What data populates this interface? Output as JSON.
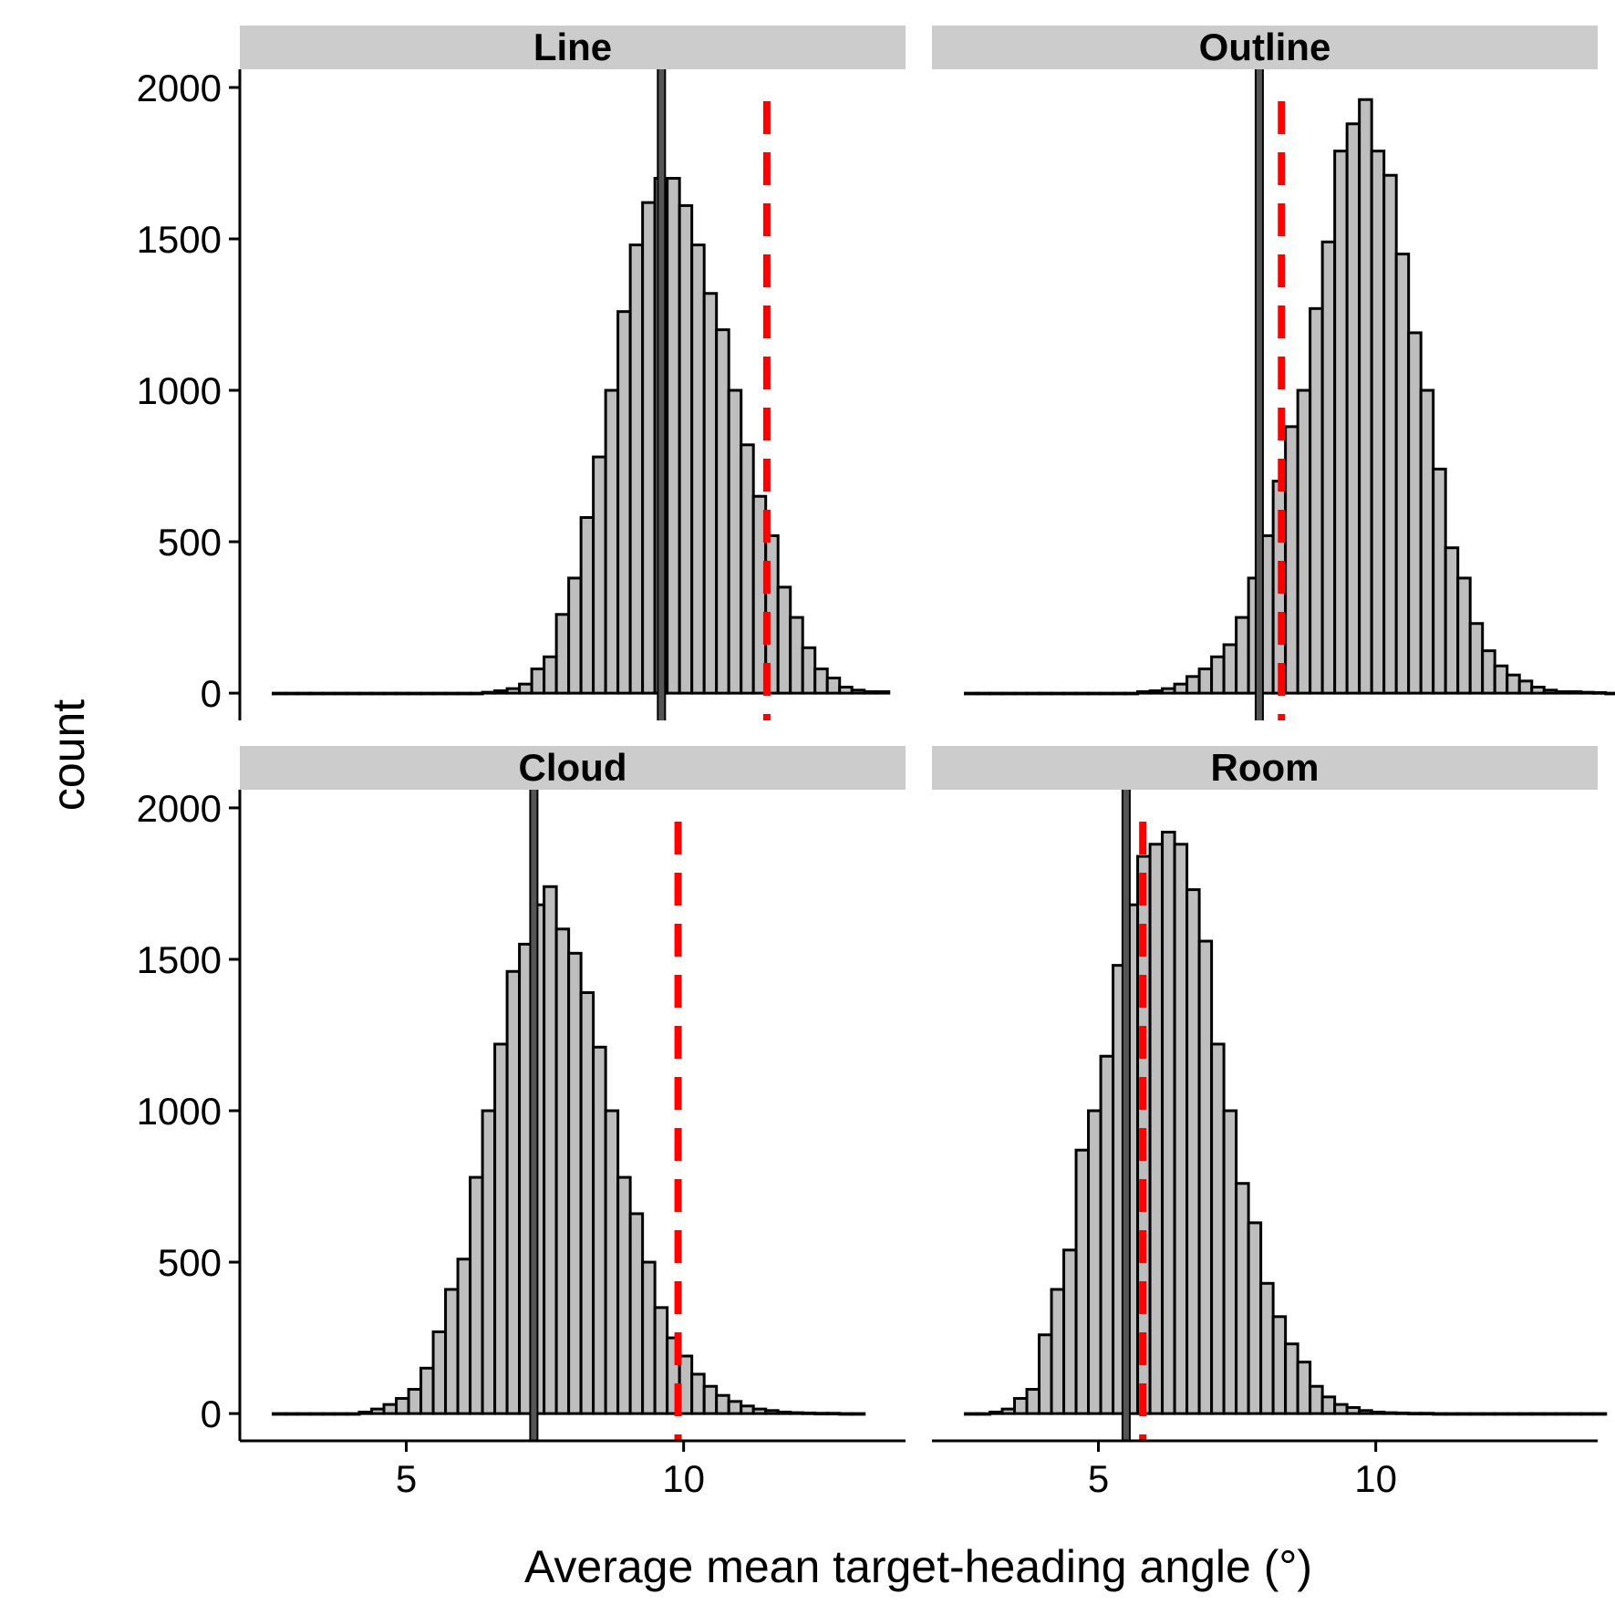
{
  "chart_data": {
    "type": "bar",
    "subtype": "faceted histogram",
    "xlabel": "Average mean target-heading angle (°)",
    "ylabel": "count",
    "xlim": [
      2,
      14
    ],
    "ylim": [
      -90,
      2060
    ],
    "x_ticks": [
      5,
      10
    ],
    "x_tick_labels": [
      "5",
      "10"
    ],
    "y_ticks": [
      0,
      500,
      1000,
      1500,
      2000
    ],
    "y_tick_labels": [
      "0",
      "500",
      "1000",
      "1500",
      "2000"
    ],
    "bar_fill": "#bebebe",
    "bar_edge": "#000000",
    "strip_fill": "#cccccc",
    "mean_line_color": "#555555",
    "observed_line_color": "#ff0000",
    "grid": false,
    "legend": "none",
    "panels": [
      {
        "label": "Line",
        "bin_start": 2.6,
        "bin_width": 0.222,
        "counts": [
          0,
          0,
          0,
          0,
          0,
          0,
          0,
          0,
          0,
          0,
          0,
          0,
          0,
          0,
          0,
          0,
          0,
          3,
          8,
          15,
          30,
          80,
          120,
          260,
          380,
          580,
          780,
          1000,
          1260,
          1480,
          1620,
          1700,
          1700,
          1610,
          1480,
          1320,
          1200,
          1000,
          820,
          650,
          520,
          350,
          250,
          150,
          80,
          50,
          20,
          10,
          5,
          5
        ],
        "mean_line_x": 9.6,
        "observed_line_x": 11.5
      },
      {
        "label": "Outline",
        "bin_start": 2.6,
        "bin_width": 0.222,
        "counts": [
          0,
          0,
          0,
          0,
          0,
          0,
          0,
          0,
          0,
          0,
          0,
          0,
          0,
          0,
          5,
          8,
          15,
          30,
          55,
          80,
          120,
          160,
          250,
          380,
          520,
          700,
          880,
          1000,
          1270,
          1490,
          1790,
          1880,
          1960,
          1790,
          1710,
          1450,
          1190,
          1000,
          740,
          480,
          380,
          230,
          140,
          90,
          60,
          40,
          20,
          10,
          5,
          5,
          3,
          2,
          0
        ],
        "mean_line_x": 7.9,
        "observed_line_x": 8.3
      },
      {
        "label": "Cloud",
        "bin_start": 2.6,
        "bin_width": 0.222,
        "counts": [
          0,
          0,
          0,
          0,
          0,
          0,
          0,
          5,
          15,
          30,
          50,
          80,
          150,
          270,
          410,
          510,
          780,
          1000,
          1220,
          1460,
          1550,
          1680,
          1740,
          1600,
          1520,
          1390,
          1210,
          1000,
          780,
          660,
          500,
          350,
          250,
          190,
          130,
          90,
          60,
          40,
          25,
          15,
          10,
          5,
          3,
          2,
          1,
          1,
          0,
          0
        ],
        "mean_line_x": 7.3,
        "observed_line_x": 9.9
      },
      {
        "label": "Room",
        "bin_start": 2.6,
        "bin_width": 0.222,
        "counts": [
          0,
          0,
          5,
          15,
          50,
          80,
          260,
          410,
          540,
          870,
          1000,
          1180,
          1480,
          1680,
          1840,
          1880,
          1920,
          1880,
          1730,
          1560,
          1220,
          1000,
          760,
          630,
          430,
          320,
          230,
          170,
          90,
          55,
          30,
          20,
          10,
          5,
          3,
          2,
          1,
          1,
          0,
          0,
          0,
          0,
          0,
          0,
          0,
          0,
          0,
          0,
          0,
          0,
          0,
          0
        ],
        "mean_line_x": 5.5,
        "observed_line_x": 5.8
      }
    ]
  }
}
